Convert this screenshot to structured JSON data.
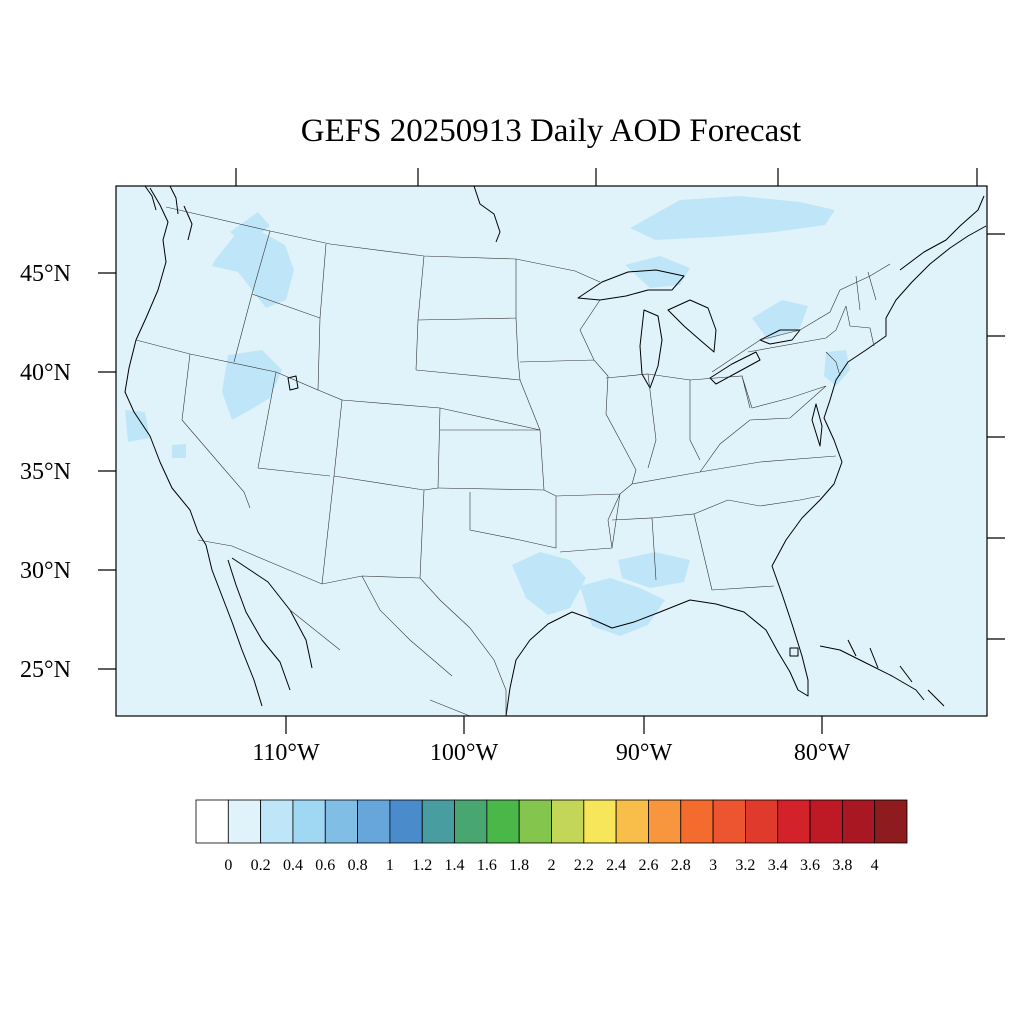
{
  "title": "GEFS 20250913 Daily AOD Forecast",
  "map": {
    "variable": "AOD",
    "background_color": "#e0f3fb",
    "lat_ticks": [
      {
        "value": 45,
        "label": "45°N"
      },
      {
        "value": 40,
        "label": "40°N"
      },
      {
        "value": 35,
        "label": "35°N"
      },
      {
        "value": 30,
        "label": "30°N"
      },
      {
        "value": 25,
        "label": "25°N"
      }
    ],
    "lon_ticks": [
      {
        "value": -110,
        "label": "110°W"
      },
      {
        "value": -100,
        "label": "100°W"
      },
      {
        "value": -90,
        "label": "90°W"
      },
      {
        "value": -80,
        "label": "80°W"
      }
    ]
  },
  "colorbar": {
    "labels": [
      "0",
      "0.2",
      "0.4",
      "0.6",
      "0.8",
      "1",
      "1.2",
      "1.4",
      "1.6",
      "1.8",
      "2",
      "2.2",
      "2.4",
      "2.6",
      "2.8",
      "3",
      "3.2",
      "3.4",
      "3.6",
      "3.8",
      "4"
    ],
    "colors": [
      "#ffffff",
      "#e0f3fb",
      "#bfe6f8",
      "#a0d8f4",
      "#80bee6",
      "#66a6db",
      "#4a8ccb",
      "#479d9f",
      "#48a671",
      "#4ab749",
      "#84c64d",
      "#c3d658",
      "#f7e55a",
      "#f9be4a",
      "#f7963c",
      "#f46b2e",
      "#ec5530",
      "#e03a2c",
      "#d4222a",
      "#be1a26",
      "#a81722",
      "#8e1b1d"
    ]
  }
}
